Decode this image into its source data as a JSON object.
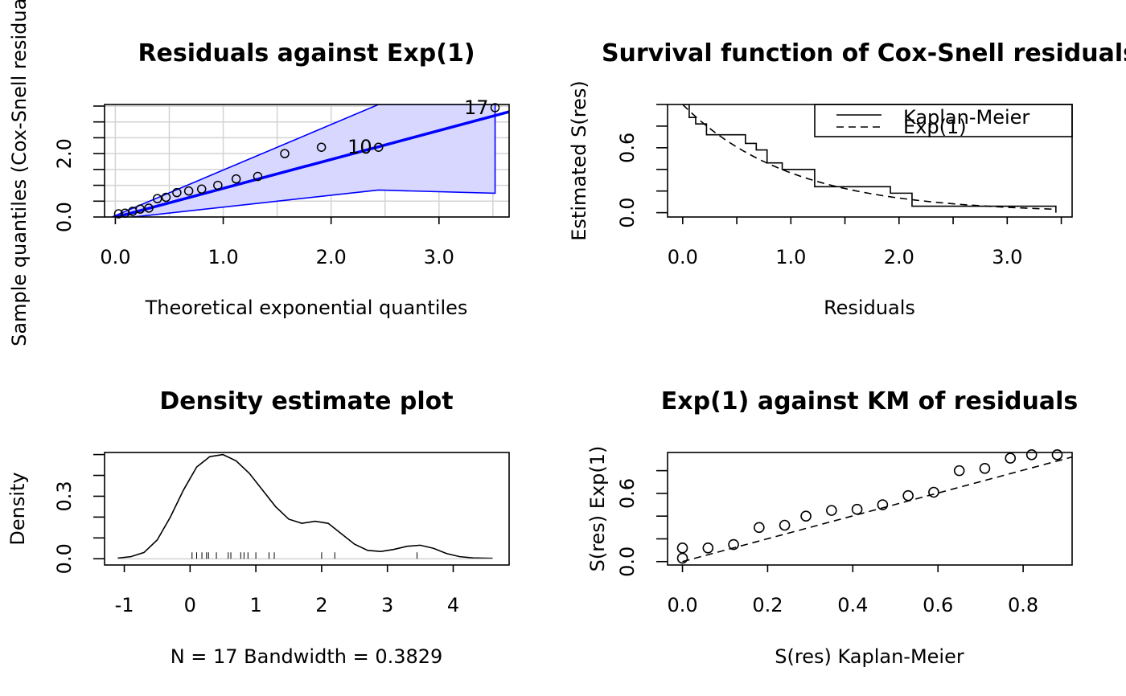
{
  "chart_data": [
    {
      "type": "scatter",
      "title": "Residuals against Exp(1)",
      "xlabel": "Theoretical exponential quantiles",
      "ylabel": "Sample quantiles (Cox-Snell residuals)",
      "xlim": [
        -0.1,
        3.65
      ],
      "ylim": [
        0,
        3.55
      ],
      "grid": true,
      "xticks": [
        "0.0",
        "1.0",
        "2.0",
        "3.0"
      ],
      "yticks": [
        "0.0",
        "2.0"
      ],
      "points": {
        "x": [
          0.03,
          0.09,
          0.16,
          0.23,
          0.31,
          0.39,
          0.47,
          0.57,
          0.68,
          0.8,
          0.95,
          1.12,
          1.32,
          1.57,
          1.91,
          2.44,
          3.52
        ],
        "y": [
          0.1,
          0.12,
          0.18,
          0.25,
          0.28,
          0.58,
          0.62,
          0.77,
          0.82,
          0.88,
          1.0,
          1.2,
          1.28,
          2.0,
          2.2,
          2.2,
          3.45
        ]
      },
      "point_labels": [
        {
          "text": "17",
          "x": 3.52,
          "y": 3.45
        },
        {
          "text": "10",
          "x": 2.44,
          "y": 2.2
        }
      ],
      "reference_line": {
        "x": [
          -0.1,
          3.65
        ],
        "y": [
          -0.1,
          3.32
        ]
      },
      "envelope": {
        "x": [
          -0.1,
          2.44,
          3.52
        ],
        "upper": [
          -0.1,
          3.55,
          3.55
        ],
        "lower": [
          -0.1,
          0.85,
          0.75
        ]
      },
      "colors": {
        "band_fill": "#d7d7ff",
        "band_line": "#0000ff",
        "reference": "#0000ff",
        "grid": "#d3d3d3"
      }
    },
    {
      "type": "line",
      "title": "Survival function of Cox-Snell residuals",
      "xlabel": "Residuals",
      "ylabel": "Estimated S(res)",
      "xlim": [
        -0.14,
        3.6
      ],
      "ylim": [
        -0.04,
        1.0
      ],
      "xticks": [
        "0.0",
        "1.0",
        "2.0",
        "3.0"
      ],
      "yticks": [
        "0.0",
        "0.6"
      ],
      "legend": {
        "position": "top-right",
        "entries": [
          "Kaplan-Meier",
          "Exp(1)"
        ]
      },
      "series": [
        {
          "name": "Kaplan-Meier",
          "style": "step",
          "x": [
            0.0,
            0.06,
            0.12,
            0.22,
            0.52,
            0.58,
            0.68,
            0.78,
            0.92,
            1.22,
            1.92,
            2.12,
            3.45
          ],
          "y": [
            1.0,
            0.88,
            0.82,
            0.72,
            0.72,
            0.64,
            0.58,
            0.46,
            0.4,
            0.24,
            0.18,
            0.06,
            0.0
          ]
        },
        {
          "name": "Exp(1)",
          "style": "dashed",
          "function": "exp(-x)",
          "x_range": [
            0.0,
            3.45
          ]
        }
      ]
    },
    {
      "type": "line",
      "title": "Density estimate plot",
      "xlabel": "N = 17   Bandwidth = 0.3829",
      "ylabel": "Density",
      "xlim": [
        -1.3,
        4.85
      ],
      "ylim": [
        -0.03,
        0.51
      ],
      "xticks": [
        "-1",
        "0",
        "1",
        "2",
        "3",
        "4"
      ],
      "yticks": [
        "0.0",
        "0.3"
      ],
      "series": [
        {
          "x": [
            -1.1,
            -0.9,
            -0.7,
            -0.5,
            -0.3,
            -0.1,
            0.1,
            0.3,
            0.5,
            0.7,
            0.9,
            1.1,
            1.3,
            1.5,
            1.7,
            1.9,
            2.1,
            2.3,
            2.5,
            2.7,
            2.9,
            3.1,
            3.3,
            3.5,
            3.7,
            3.9,
            4.1,
            4.3,
            4.6
          ],
          "y": [
            0.003,
            0.01,
            0.03,
            0.09,
            0.2,
            0.33,
            0.44,
            0.49,
            0.5,
            0.47,
            0.41,
            0.33,
            0.25,
            0.19,
            0.17,
            0.18,
            0.17,
            0.12,
            0.07,
            0.04,
            0.035,
            0.045,
            0.06,
            0.065,
            0.05,
            0.025,
            0.01,
            0.004,
            0.002
          ]
        }
      ],
      "rug": [
        0.03,
        0.1,
        0.18,
        0.25,
        0.28,
        0.4,
        0.58,
        0.62,
        0.77,
        0.82,
        0.88,
        1.0,
        1.2,
        1.28,
        2.0,
        2.2,
        3.45
      ]
    },
    {
      "type": "scatter",
      "title": "Exp(1) against KM of residuals",
      "xlabel": "S(res) Kaplan-Meier",
      "ylabel": "S(res) Exp(1)",
      "xlim": [
        -0.035,
        0.915
      ],
      "ylim": [
        -0.03,
        0.96
      ],
      "xticks": [
        "0.0",
        "0.2",
        "0.4",
        "0.6",
        "0.8"
      ],
      "yticks": [
        "0.0",
        "0.6"
      ],
      "points": {
        "x": [
          0.0,
          0.0,
          0.06,
          0.12,
          0.18,
          0.24,
          0.29,
          0.35,
          0.41,
          0.47,
          0.53,
          0.59,
          0.65,
          0.71,
          0.77,
          0.82,
          0.88
        ],
        "y": [
          0.03,
          0.12,
          0.12,
          0.15,
          0.3,
          0.32,
          0.4,
          0.45,
          0.46,
          0.5,
          0.58,
          0.61,
          0.8,
          0.82,
          0.91,
          0.94,
          0.94
        ]
      },
      "reference_line": {
        "x": [
          0.0,
          0.915
        ],
        "y": [
          0.0,
          0.92
        ]
      }
    }
  ]
}
